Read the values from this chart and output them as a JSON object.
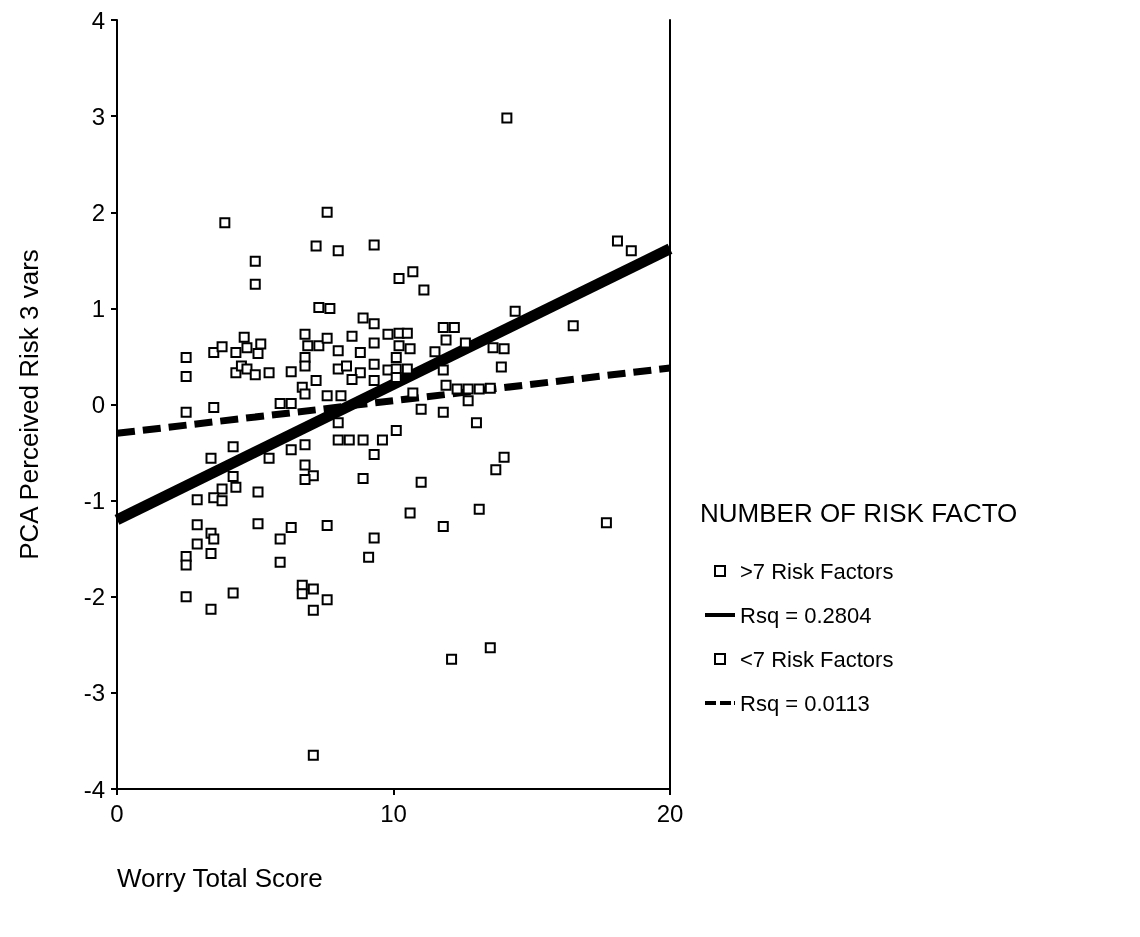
{
  "chart_data": {
    "type": "scatter",
    "xlabel": "Worry Total Score",
    "ylabel": "PCA Perceived Risk 3 vars",
    "legend_title": "NUMBER OF RISK FACTO",
    "xlim": [
      0,
      20
    ],
    "xticks": [
      0,
      10,
      20
    ],
    "ylim": [
      -4,
      4
    ],
    "yticks": [
      -4,
      -3,
      -2,
      -1,
      0,
      1,
      2,
      3,
      4
    ],
    "grid": false,
    "legend": "right",
    "marker": "square",
    "series": [
      {
        "name": ">7 Risk Factors",
        "color": "#000000",
        "x": [
          14.1,
          3.9,
          7.6,
          7.2,
          8.0,
          9.3,
          5.0,
          5.0,
          10.2,
          10.7,
          11.1,
          18.1,
          18.6,
          14.4,
          16.5,
          2.5,
          2.5,
          2.5,
          4.6,
          3.5,
          3.8,
          4.3,
          4.7,
          5.2,
          5.1,
          4.3,
          4.5,
          4.7,
          5.0,
          5.5,
          6.3,
          3.5,
          5.9,
          6.3,
          4.2,
          3.4,
          5.5,
          6.3,
          6.8,
          6.8,
          4.2,
          7.1,
          8.9,
          6.8,
          6.9,
          6.8,
          6.8,
          7.3,
          7.6,
          8.0,
          8.5,
          8.8,
          9.3,
          9.8,
          8.0,
          8.3,
          8.8,
          9.3,
          8.5,
          7.2,
          6.7,
          6.8,
          7.6,
          8.1,
          9.3,
          9.8,
          7.3,
          7.7,
          8.9,
          9.3,
          8.0,
          8.0
        ],
        "values": [
          2.98,
          1.89,
          2.0,
          1.65,
          1.6,
          1.66,
          1.49,
          1.25,
          1.31,
          1.38,
          1.19,
          1.7,
          1.6,
          0.97,
          0.82,
          0.49,
          0.29,
          -0.08,
          0.7,
          0.54,
          0.6,
          0.54,
          0.59,
          0.63,
          0.53,
          0.33,
          0.4,
          0.37,
          0.31,
          0.33,
          0.34,
          -0.03,
          0.01,
          0.01,
          -0.44,
          -0.56,
          -0.56,
          -0.47,
          -0.42,
          -0.63,
          -0.75,
          -0.74,
          -0.77,
          0.73,
          0.61,
          0.49,
          0.4,
          0.61,
          0.69,
          0.56,
          0.71,
          0.54,
          0.64,
          0.73,
          0.37,
          0.4,
          0.33,
          0.42,
          0.26,
          0.25,
          0.18,
          0.11,
          0.09,
          0.09,
          0.25,
          0.36,
          1.01,
          1.0,
          0.9,
          0.84,
          -0.19,
          -0.37
        ]
      },
      {
        "name": "Rsq = 0.2804",
        "type": "line",
        "color": "#000000",
        "line_style": "solid",
        "marker": "none",
        "x": [
          0,
          20
        ],
        "values": [
          -1.2,
          1.62
        ]
      },
      {
        "name": "<7 Risk Factors",
        "color": "#000000",
        "x": [
          8.4,
          8.9,
          9.6,
          9.3,
          10.1,
          11.8,
          12.2,
          11.9,
          12.6,
          11.5,
          13.6,
          14.0,
          13.9,
          11.8,
          10.2,
          10.5,
          10.2,
          10.6,
          10.1,
          10.1,
          10.5,
          10.1,
          11.9,
          12.3,
          12.7,
          13.1,
          13.5,
          10.7,
          12.7,
          11.0,
          11.8,
          13.0,
          14.0,
          13.7,
          11.0,
          10.6,
          13.1,
          11.8,
          17.7,
          4.3,
          3.8,
          3.5,
          3.8,
          2.9,
          5.1,
          6.8,
          2.9,
          3.4,
          3.5,
          2.9,
          3.4,
          2.5,
          2.5,
          5.1,
          6.3,
          7.6,
          5.9,
          5.9,
          9.3,
          9.1,
          2.5,
          3.4,
          4.2,
          6.7,
          6.7,
          7.1,
          7.6,
          7.1,
          7.1,
          12.1,
          13.5
        ],
        "values": [
          -0.37,
          -0.37,
          -0.37,
          -0.52,
          -0.27,
          0.8,
          0.8,
          0.67,
          0.64,
          0.55,
          0.59,
          0.58,
          0.39,
          0.36,
          0.74,
          0.74,
          0.61,
          0.58,
          0.49,
          0.37,
          0.37,
          0.28,
          0.2,
          0.16,
          0.16,
          0.16,
          0.17,
          0.12,
          0.04,
          -0.05,
          -0.08,
          -0.19,
          -0.55,
          -0.68,
          -0.81,
          -1.13,
          -1.09,
          -1.27,
          -1.23,
          -0.86,
          -0.88,
          -0.97,
          -1.0,
          -0.99,
          -0.91,
          -0.78,
          -1.25,
          -1.34,
          -1.4,
          -1.45,
          -1.55,
          -1.58,
          -1.67,
          -1.24,
          -1.28,
          -1.26,
          -1.4,
          -1.64,
          -1.39,
          -1.59,
          -2.0,
          -2.13,
          -1.96,
          -1.88,
          -1.97,
          -1.92,
          -2.03,
          -2.14,
          -3.65,
          -2.65,
          -2.53
        ]
      },
      {
        "name": "Rsq = 0.0113",
        "type": "line",
        "color": "#000000",
        "line_style": "dashed",
        "marker": "none",
        "x": [
          0,
          20
        ],
        "values": [
          -0.3,
          0.38
        ]
      }
    ]
  }
}
